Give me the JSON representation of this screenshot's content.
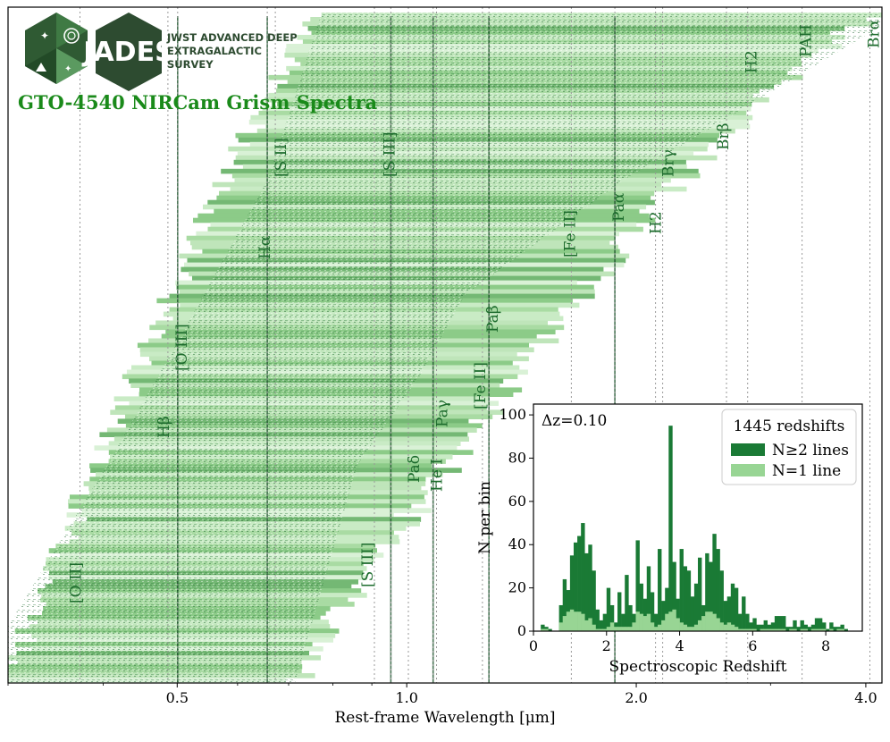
{
  "logo": {
    "word": "JADES",
    "line1": "JWST ADVANCED DEEP",
    "line2": "EXTRAGALACTIC",
    "line3": "SURVEY"
  },
  "title": "GTO-4540 NIRCam Grism Spectra",
  "colors": {
    "dark_green": "#1a7a35",
    "light_green": "#98d594",
    "label_green": "#1c6b2c",
    "title_green": "#1a8a1a"
  },
  "chart_data": [
    {
      "type": "heatmap",
      "xlabel": "Rest-frame Wavelength [μm]",
      "xscale": "log",
      "xlim": [
        0.3,
        4.2
      ],
      "xticks": [
        {
          "value": 0.5,
          "label": "0.5"
        },
        {
          "value": 1.0,
          "label": "1.0"
        },
        {
          "value": 2.0,
          "label": "2.0"
        },
        {
          "value": 4.0,
          "label": "4.0"
        }
      ],
      "lines": [
        {
          "label": "[O II]",
          "wavelength": 0.3728
        },
        {
          "label": "Hβ",
          "wavelength": 0.4861
        },
        {
          "label": "[O III]",
          "wavelength": 0.5007
        },
        {
          "label": "Hα",
          "wavelength": 0.6563
        },
        {
          "label": "[S II]",
          "wavelength": 0.6724
        },
        {
          "label": "[S III]",
          "wavelength": 0.9069
        },
        {
          "label": "[S III]",
          "wavelength": 0.9531
        },
        {
          "label": "Paδ",
          "wavelength": 1.005
        },
        {
          "label": "He I",
          "wavelength": 1.083
        },
        {
          "label": "Paγ",
          "wavelength": 1.094
        },
        {
          "label": "[Fe II]",
          "wavelength": 1.257
        },
        {
          "label": "Paβ",
          "wavelength": 1.282
        },
        {
          "label": "[Fe II]",
          "wavelength": 1.644
        },
        {
          "label": "Paα",
          "wavelength": 1.875
        },
        {
          "label": "H2",
          "wavelength": 2.12
        },
        {
          "label": "Brγ",
          "wavelength": 2.166
        },
        {
          "label": "Brβ",
          "wavelength": 2.626
        },
        {
          "label": "H2",
          "wavelength": 2.8
        },
        {
          "label": "PAH",
          "wavelength": 3.3
        },
        {
          "label": "Brα",
          "wavelength": 4.05
        }
      ]
    },
    {
      "type": "bar",
      "annotation": "Δz=0.10",
      "xlabel": "Spectroscopic Redshift",
      "ylabel": "N per bin",
      "xlim": [
        0,
        9
      ],
      "ylim": [
        0,
        105
      ],
      "xticks": [
        0,
        2,
        4,
        6,
        8
      ],
      "yticks": [
        0,
        20,
        40,
        60,
        80,
        100
      ],
      "bin_width": 0.1,
      "legend": {
        "title": "1445 redshifts",
        "position": "top-right",
        "entries": [
          {
            "name": "N≥2 lines",
            "color": "#1a7a35"
          },
          {
            "name": "N=1 line",
            "color": "#98d594"
          }
        ]
      },
      "series": [
        {
          "name": "N≥2 lines",
          "start": 0.2,
          "values": [
            3,
            2,
            1,
            0,
            0,
            12,
            24,
            19,
            35,
            41,
            44,
            50,
            36,
            40,
            28,
            10,
            5,
            8,
            20,
            12,
            4,
            18,
            8,
            26,
            12,
            8,
            42,
            22,
            15,
            30,
            18,
            8,
            38,
            14,
            20,
            95,
            32,
            15,
            38,
            30,
            28,
            16,
            22,
            34,
            12,
            36,
            32,
            45,
            38,
            28,
            14,
            16,
            22,
            20,
            8,
            16,
            8,
            4,
            6,
            3,
            3,
            5,
            3,
            4,
            7,
            7,
            7,
            2,
            2,
            5,
            2,
            5,
            3,
            2,
            3,
            6,
            6,
            4,
            1,
            4,
            2,
            2,
            3,
            1
          ]
        },
        {
          "name": "N=1 line",
          "start": 0.2,
          "values": [
            1,
            1,
            0,
            0,
            0,
            4,
            7,
            9,
            10,
            9,
            9,
            8,
            5,
            6,
            3,
            1,
            1,
            1,
            2,
            4,
            2,
            2,
            2,
            2,
            2,
            4,
            9,
            8,
            7,
            8,
            4,
            2,
            3,
            5,
            8,
            9,
            10,
            6,
            4,
            3,
            2,
            2,
            3,
            5,
            7,
            9,
            9,
            8,
            6,
            4,
            3,
            4,
            3,
            2,
            1,
            1,
            1,
            1,
            1,
            0,
            1,
            1,
            1,
            1,
            1,
            1,
            1,
            0,
            1,
            1,
            0,
            1,
            1,
            0,
            1,
            1,
            1,
            1,
            0,
            1,
            0,
            1,
            1,
            0
          ]
        }
      ]
    }
  ]
}
